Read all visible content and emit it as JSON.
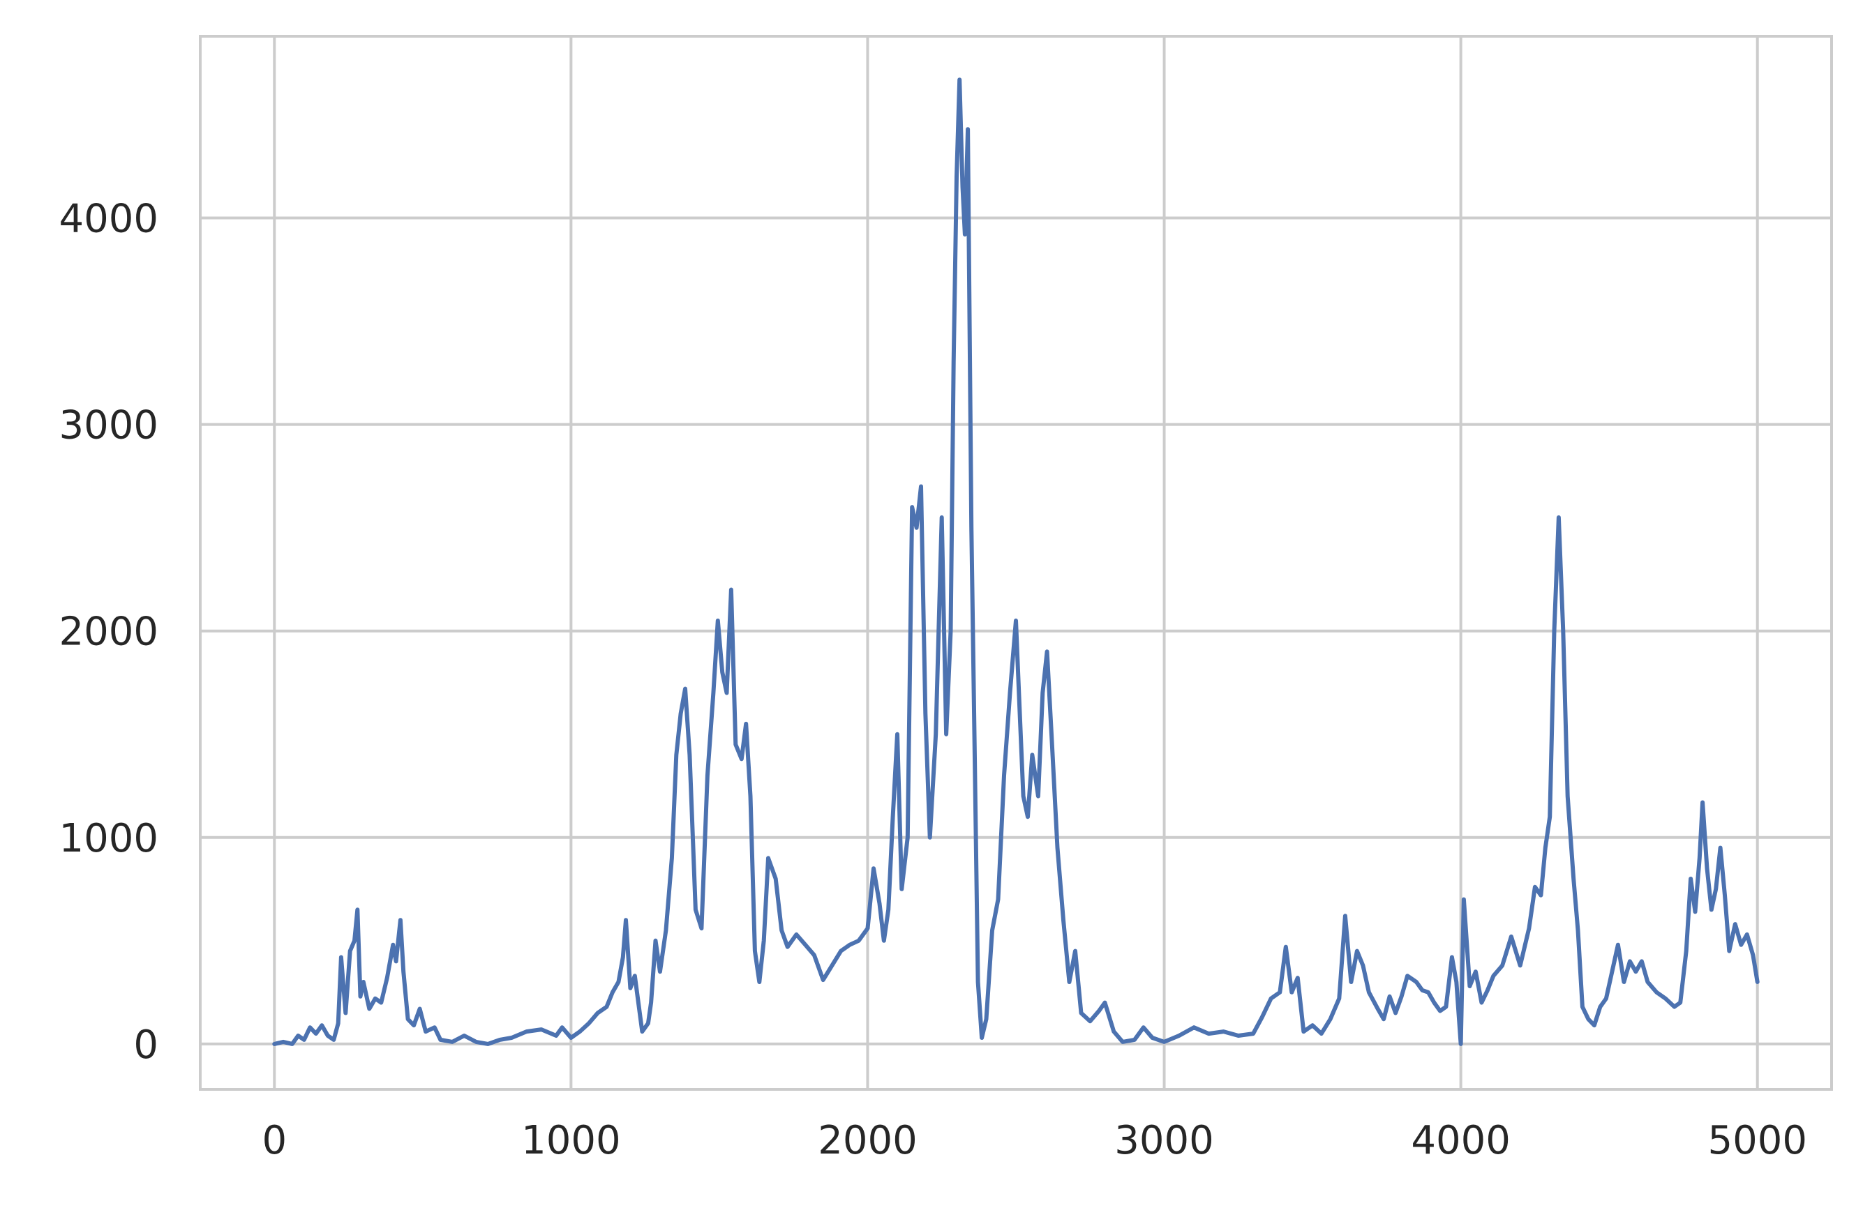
{
  "chart_data": {
    "type": "line",
    "title": "",
    "xlabel": "",
    "ylabel": "",
    "xlim": [
      -250,
      5250
    ],
    "ylim": [
      -220,
      4880
    ],
    "grid": true,
    "legend": "none",
    "colors": {
      "line": "#4c72b0",
      "grid": "#cccccc",
      "frame": "#cccccc",
      "text": "#262626"
    },
    "x_ticks": [
      0,
      1000,
      2000,
      3000,
      4000,
      5000
    ],
    "x_tick_labels": [
      "0",
      "1000",
      "2000",
      "3000",
      "4000",
      "5000"
    ],
    "y_ticks": [
      0,
      1000,
      2000,
      3000,
      4000
    ],
    "y_tick_labels": [
      "0",
      "1000",
      "2000",
      "3000",
      "4000"
    ],
    "series": [
      {
        "values": [
          [
            0,
            0
          ],
          [
            30,
            10
          ],
          [
            60,
            0
          ],
          [
            80,
            40
          ],
          [
            100,
            20
          ],
          [
            120,
            80
          ],
          [
            140,
            50
          ],
          [
            160,
            90
          ],
          [
            180,
            40
          ],
          [
            200,
            20
          ],
          [
            215,
            100
          ],
          [
            225,
            420
          ],
          [
            240,
            150
          ],
          [
            255,
            450
          ],
          [
            270,
            500
          ],
          [
            280,
            650
          ],
          [
            290,
            230
          ],
          [
            300,
            300
          ],
          [
            320,
            170
          ],
          [
            340,
            220
          ],
          [
            360,
            200
          ],
          [
            380,
            320
          ],
          [
            400,
            480
          ],
          [
            410,
            400
          ],
          [
            425,
            600
          ],
          [
            435,
            350
          ],
          [
            450,
            120
          ],
          [
            470,
            90
          ],
          [
            490,
            170
          ],
          [
            510,
            60
          ],
          [
            540,
            80
          ],
          [
            560,
            20
          ],
          [
            600,
            10
          ],
          [
            640,
            40
          ],
          [
            680,
            10
          ],
          [
            720,
            0
          ],
          [
            760,
            20
          ],
          [
            800,
            30
          ],
          [
            850,
            60
          ],
          [
            900,
            70
          ],
          [
            950,
            40
          ],
          [
            970,
            80
          ],
          [
            1000,
            30
          ],
          [
            1030,
            60
          ],
          [
            1060,
            100
          ],
          [
            1090,
            150
          ],
          [
            1120,
            180
          ],
          [
            1140,
            250
          ],
          [
            1160,
            300
          ],
          [
            1175,
            420
          ],
          [
            1185,
            600
          ],
          [
            1200,
            270
          ],
          [
            1215,
            330
          ],
          [
            1240,
            60
          ],
          [
            1260,
            100
          ],
          [
            1270,
            200
          ],
          [
            1285,
            500
          ],
          [
            1300,
            350
          ],
          [
            1320,
            550
          ],
          [
            1340,
            900
          ],
          [
            1355,
            1400
          ],
          [
            1370,
            1600
          ],
          [
            1385,
            1720
          ],
          [
            1400,
            1400
          ],
          [
            1420,
            650
          ],
          [
            1440,
            560
          ],
          [
            1460,
            1300
          ],
          [
            1480,
            1700
          ],
          [
            1495,
            2050
          ],
          [
            1510,
            1800
          ],
          [
            1525,
            1700
          ],
          [
            1540,
            2200
          ],
          [
            1555,
            1450
          ],
          [
            1575,
            1380
          ],
          [
            1590,
            1550
          ],
          [
            1605,
            1200
          ],
          [
            1620,
            450
          ],
          [
            1635,
            300
          ],
          [
            1650,
            500
          ],
          [
            1665,
            900
          ],
          [
            1690,
            800
          ],
          [
            1710,
            550
          ],
          [
            1730,
            470
          ],
          [
            1760,
            530
          ],
          [
            1790,
            480
          ],
          [
            1820,
            430
          ],
          [
            1850,
            310
          ],
          [
            1880,
            380
          ],
          [
            1910,
            450
          ],
          [
            1940,
            480
          ],
          [
            1970,
            500
          ],
          [
            2000,
            560
          ],
          [
            2020,
            850
          ],
          [
            2040,
            680
          ],
          [
            2055,
            500
          ],
          [
            2070,
            650
          ],
          [
            2085,
            1100
          ],
          [
            2100,
            1500
          ],
          [
            2115,
            750
          ],
          [
            2135,
            1000
          ],
          [
            2150,
            2600
          ],
          [
            2165,
            2500
          ],
          [
            2180,
            2700
          ],
          [
            2195,
            1600
          ],
          [
            2210,
            1000
          ],
          [
            2230,
            1500
          ],
          [
            2250,
            2550
          ],
          [
            2265,
            1500
          ],
          [
            2280,
            2000
          ],
          [
            2290,
            3300
          ],
          [
            2300,
            4200
          ],
          [
            2310,
            4670
          ],
          [
            2320,
            4150
          ],
          [
            2328,
            3920
          ],
          [
            2338,
            4430
          ],
          [
            2350,
            2500
          ],
          [
            2360,
            1500
          ],
          [
            2372,
            300
          ],
          [
            2385,
            30
          ],
          [
            2400,
            120
          ],
          [
            2420,
            550
          ],
          [
            2440,
            700
          ],
          [
            2460,
            1300
          ],
          [
            2480,
            1700
          ],
          [
            2500,
            2050
          ],
          [
            2510,
            1700
          ],
          [
            2525,
            1200
          ],
          [
            2540,
            1100
          ],
          [
            2555,
            1400
          ],
          [
            2575,
            1200
          ],
          [
            2590,
            1700
          ],
          [
            2605,
            1900
          ],
          [
            2620,
            1500
          ],
          [
            2640,
            950
          ],
          [
            2660,
            600
          ],
          [
            2680,
            300
          ],
          [
            2700,
            450
          ],
          [
            2720,
            150
          ],
          [
            2750,
            110
          ],
          [
            2780,
            160
          ],
          [
            2800,
            200
          ],
          [
            2830,
            60
          ],
          [
            2860,
            10
          ],
          [
            2900,
            20
          ],
          [
            2930,
            80
          ],
          [
            2960,
            30
          ],
          [
            3000,
            10
          ],
          [
            3050,
            40
          ],
          [
            3100,
            80
          ],
          [
            3150,
            50
          ],
          [
            3200,
            60
          ],
          [
            3250,
            40
          ],
          [
            3300,
            50
          ],
          [
            3330,
            130
          ],
          [
            3360,
            220
          ],
          [
            3390,
            250
          ],
          [
            3410,
            470
          ],
          [
            3430,
            250
          ],
          [
            3450,
            320
          ],
          [
            3470,
            60
          ],
          [
            3500,
            90
          ],
          [
            3530,
            50
          ],
          [
            3560,
            120
          ],
          [
            3590,
            220
          ],
          [
            3610,
            620
          ],
          [
            3630,
            300
          ],
          [
            3650,
            450
          ],
          [
            3670,
            380
          ],
          [
            3690,
            250
          ],
          [
            3720,
            170
          ],
          [
            3740,
            120
          ],
          [
            3760,
            230
          ],
          [
            3780,
            150
          ],
          [
            3800,
            230
          ],
          [
            3820,
            330
          ],
          [
            3850,
            300
          ],
          [
            3870,
            260
          ],
          [
            3890,
            250
          ],
          [
            3910,
            200
          ],
          [
            3930,
            160
          ],
          [
            3950,
            180
          ],
          [
            3970,
            420
          ],
          [
            3985,
            300
          ],
          [
            4000,
            0
          ],
          [
            4010,
            700
          ],
          [
            4030,
            280
          ],
          [
            4050,
            350
          ],
          [
            4070,
            200
          ],
          [
            4090,
            260
          ],
          [
            4110,
            330
          ],
          [
            4140,
            380
          ],
          [
            4170,
            520
          ],
          [
            4200,
            380
          ],
          [
            4230,
            560
          ],
          [
            4250,
            760
          ],
          [
            4270,
            720
          ],
          [
            4285,
            950
          ],
          [
            4300,
            1100
          ],
          [
            4315,
            2000
          ],
          [
            4330,
            2550
          ],
          [
            4345,
            2000
          ],
          [
            4360,
            1200
          ],
          [
            4380,
            800
          ],
          [
            4395,
            550
          ],
          [
            4410,
            180
          ],
          [
            4430,
            120
          ],
          [
            4450,
            90
          ],
          [
            4470,
            180
          ],
          [
            4490,
            220
          ],
          [
            4510,
            350
          ],
          [
            4530,
            480
          ],
          [
            4550,
            300
          ],
          [
            4570,
            400
          ],
          [
            4590,
            350
          ],
          [
            4610,
            400
          ],
          [
            4630,
            300
          ],
          [
            4660,
            250
          ],
          [
            4690,
            220
          ],
          [
            4720,
            180
          ],
          [
            4740,
            200
          ],
          [
            4760,
            450
          ],
          [
            4775,
            800
          ],
          [
            4790,
            640
          ],
          [
            4805,
            900
          ],
          [
            4815,
            1170
          ],
          [
            4830,
            850
          ],
          [
            4845,
            650
          ],
          [
            4860,
            750
          ],
          [
            4875,
            950
          ],
          [
            4890,
            720
          ],
          [
            4905,
            450
          ],
          [
            4925,
            580
          ],
          [
            4945,
            480
          ],
          [
            4965,
            530
          ],
          [
            4985,
            430
          ],
          [
            5000,
            300
          ]
        ]
      }
    ]
  }
}
